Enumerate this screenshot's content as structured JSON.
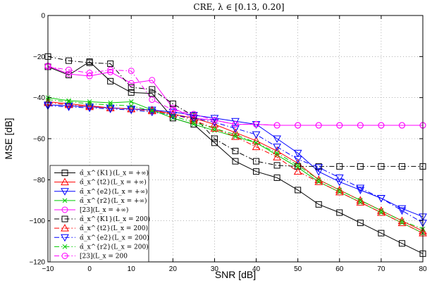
{
  "chart_data": {
    "type": "line",
    "title": "CRE, λ ∈ [0.13, 0.20]",
    "xlabel": "SNR [dB]",
    "ylabel": "MSE [dB]",
    "xlim": [
      -10,
      80
    ],
    "ylim": [
      -120,
      0
    ],
    "xticks": [
      -10,
      0,
      10,
      20,
      30,
      40,
      50,
      60,
      70,
      80
    ],
    "yticks": [
      0,
      -20,
      -40,
      -60,
      -80,
      -100,
      -120
    ],
    "xtick_labels": [
      "−10",
      "0",
      "10",
      "20",
      "30",
      "40",
      "50",
      "60",
      "70",
      "80"
    ],
    "ytick_labels": [
      "0",
      "−20",
      "−40",
      "−60",
      "−80",
      "−100",
      "−120"
    ],
    "grid": true,
    "legend_position": "bottom-left",
    "x": [
      -10,
      -5,
      0,
      5,
      10,
      15,
      20,
      25,
      30,
      35,
      40,
      45,
      50,
      55,
      60,
      65,
      70,
      75,
      80
    ],
    "series": [
      {
        "name": "α̂_x^{K1}(L_x = +∞)",
        "color": "#000000",
        "marker": "square",
        "dash": "solid",
        "values": [
          -25,
          -29,
          -22.5,
          -32,
          -37.5,
          -38,
          -50,
          -53,
          -62,
          -71,
          -76,
          -79,
          -85,
          -92,
          -96,
          -101,
          -106,
          -111,
          -116
        ]
      },
      {
        "name": "α̂_x^{t2}(L_x = +∞)",
        "color": "#ff0000",
        "marker": "triangle-up",
        "dash": "solid",
        "values": [
          -42,
          -43,
          -44,
          -45,
          -45.5,
          -46,
          -48,
          -50,
          -53,
          -57,
          -61,
          -66,
          -72,
          -80,
          -85,
          -90,
          -95,
          -100,
          -105
        ]
      },
      {
        "name": "α̂_x^{e2}(L_x = +∞)",
        "color": "#0000ff",
        "marker": "triangle-down",
        "dash": "solid",
        "values": [
          -43.5,
          -44,
          -44.5,
          -45,
          -45.5,
          -46,
          -47,
          -48.5,
          -50,
          -51.5,
          -53,
          -60,
          -67,
          -76,
          -81,
          -85,
          -89,
          -94,
          -98
        ]
      },
      {
        "name": "α̂_x^{r2}(L_x = +∞)",
        "color": "#00cc00",
        "marker": "x",
        "dash": "solid",
        "values": [
          -40,
          -41.5,
          -42,
          -42.5,
          -42,
          -46,
          -50,
          -53,
          -56,
          -59,
          -62,
          -68,
          -74,
          -81,
          -86,
          -91,
          -96,
          -101,
          -106
        ]
      },
      {
        "name": "[23](L_x = +∞)",
        "color": "#ff00ff",
        "marker": "circle",
        "dash": "solid",
        "values": [
          -24.5,
          -28.5,
          -29.5,
          -27.5,
          -33,
          -31.5,
          -45,
          -50,
          -51,
          -53,
          -53,
          -53.5,
          -53.5,
          -53.5,
          -53.5,
          -53.5,
          -53.5,
          -53.5,
          -53.5
        ]
      },
      {
        "name": "α̂_x^{K1}(L_x = 200)",
        "color": "#000000",
        "marker": "square",
        "dash": "dashdot",
        "values": [
          -20,
          -22,
          -23,
          -23.5,
          -35,
          -36,
          -43,
          -49,
          -60,
          -66,
          -71,
          -73,
          -73.5,
          -73.5,
          -73.5,
          -73.5,
          -73.5,
          -73.5,
          -73.5
        ]
      },
      {
        "name": "α̂_x^{t2}(L_x = 200)",
        "color": "#ff0000",
        "marker": "triangle-up",
        "dash": "dashdot",
        "values": [
          -42.5,
          -43.5,
          -44.5,
          -45,
          -45.5,
          -46.5,
          -48,
          -51,
          -55,
          -59,
          -64,
          -69,
          -76,
          -81,
          -86,
          -91,
          -96,
          -101,
          -106
        ]
      },
      {
        "name": "α̂_x^{e2}(L_x = 200)",
        "color": "#0000ff",
        "marker": "triangle-down",
        "dash": "dashdot",
        "values": [
          -44,
          -44.5,
          -45,
          -45.5,
          -46,
          -47,
          -48.5,
          -50,
          -52,
          -55,
          -58,
          -64,
          -70,
          -74,
          -79,
          -84,
          -89,
          -95,
          -101
        ]
      },
      {
        "name": "α̂_x^{r2}(L_x = 200)",
        "color": "#00cc00",
        "marker": "x",
        "dash": "dashdot",
        "values": [
          -41,
          -42,
          -43,
          -43.5,
          -44,
          -46.5,
          -49,
          -52,
          -55,
          -58,
          -62,
          -67,
          -73,
          -80,
          -85,
          -90,
          -95,
          -100,
          -104
        ]
      },
      {
        "name": "[23](L_x = 200",
        "color": "#ff00ff",
        "marker": "circle",
        "dash": "dashdot",
        "values": [
          -25,
          -26.5,
          -28,
          -26.5,
          -27,
          -41,
          -46,
          -48,
          -51,
          -53,
          -53,
          -53.5,
          -53.5,
          -53.5,
          -53.5,
          -53.5,
          -53.5,
          -53.5,
          -53.5
        ]
      }
    ]
  }
}
